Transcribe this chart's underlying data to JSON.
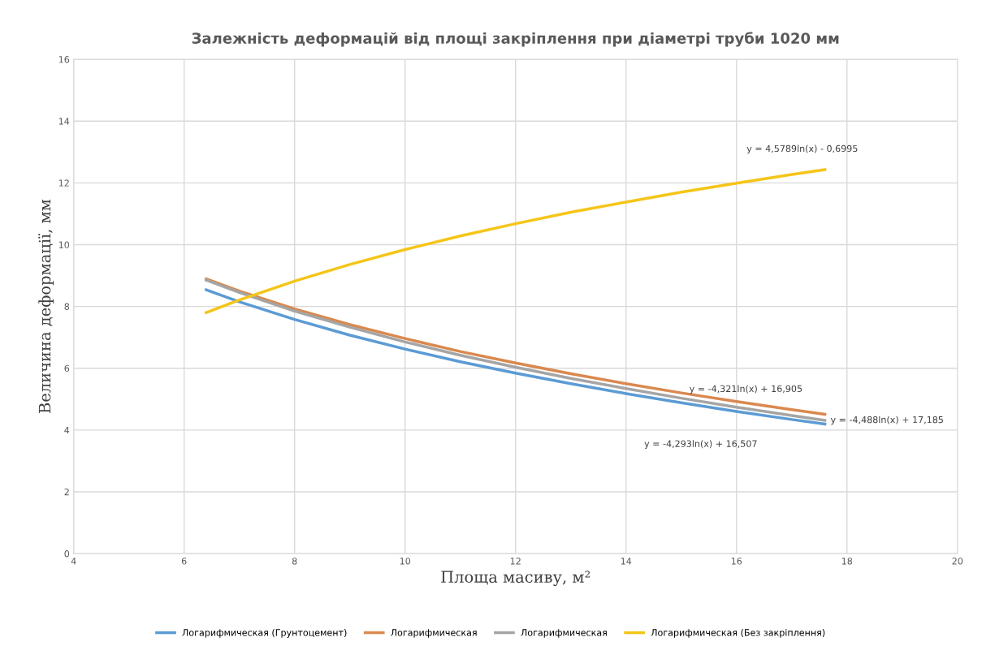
{
  "chart_data": {
    "type": "line",
    "title": "Залежність деформацій від площі закріплення при діаметрі труби 1020 мм",
    "xlabel": "Площа масиву, м²",
    "ylabel": "Величина деформації, мм",
    "series": [
      {
        "name": "Логарифмическая (Грунтоцемент)",
        "color": "#5b9bd5",
        "x": [
          6.4,
          7,
          8,
          9,
          10,
          11,
          12,
          13,
          14,
          15,
          16,
          17,
          17.6
        ],
        "values": [
          8.54,
          8.15,
          7.58,
          7.07,
          6.62,
          6.21,
          5.84,
          5.5,
          5.18,
          4.88,
          4.6,
          4.34,
          4.19
        ]
      },
      {
        "name": "Логарифмическая",
        "color": "#d9894f",
        "x": [
          6.4,
          7,
          8,
          9,
          10,
          11,
          12,
          13,
          14,
          15,
          16,
          17,
          17.6
        ],
        "values": [
          8.89,
          8.5,
          7.92,
          7.41,
          6.96,
          6.54,
          6.17,
          5.82,
          5.5,
          5.2,
          4.92,
          4.66,
          4.51
        ]
      },
      {
        "name": "Логарифмическая",
        "color": "#a5a5a5",
        "x": [
          6.4,
          7,
          8,
          9,
          10,
          11,
          12,
          13,
          14,
          15,
          16,
          17,
          17.6
        ],
        "values": [
          8.85,
          8.45,
          7.85,
          7.33,
          6.85,
          6.42,
          6.03,
          5.67,
          5.34,
          5.03,
          4.74,
          4.47,
          4.31
        ]
      },
      {
        "name": "Логарифмическая (Без закріплення)",
        "color": "#f5c518",
        "x": [
          6.4,
          7,
          8,
          9,
          10,
          11,
          12,
          13,
          14,
          15,
          16,
          17,
          17.6
        ],
        "values": [
          7.8,
          8.21,
          8.82,
          9.36,
          9.84,
          10.28,
          10.68,
          11.05,
          11.38,
          11.7,
          11.99,
          12.27,
          12.43
        ]
      }
    ],
    "annotations": [
      "y = -4,293ln(x) + 16,507",
      "y = -4,321ln(x) + 16,905",
      "y = -4,488ln(x) + 17,185",
      "y = 4,5789ln(x) - 0,6995"
    ],
    "xlim": [
      4,
      20
    ],
    "xticks": [
      4,
      6,
      8,
      10,
      12,
      14,
      16,
      18,
      20
    ],
    "ylim": [
      0,
      16
    ],
    "yticks": [
      0,
      2,
      4,
      6,
      8,
      10,
      12,
      14,
      16
    ],
    "grid": true,
    "legend": "bottom"
  }
}
